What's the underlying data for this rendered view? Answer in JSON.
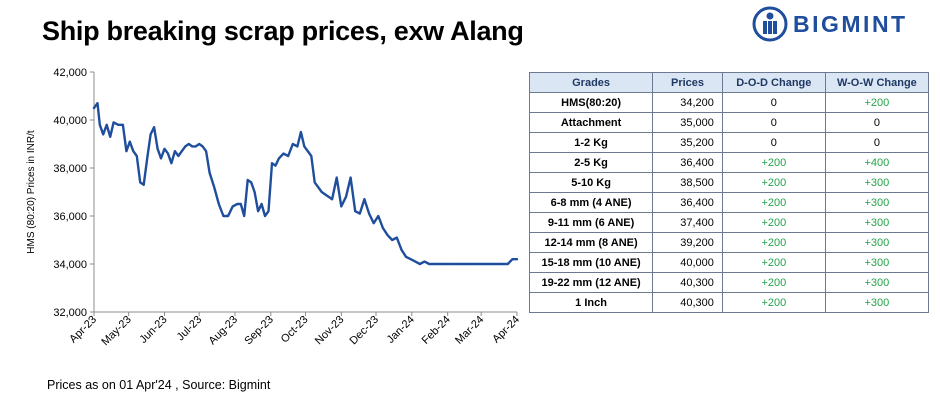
{
  "title": "Ship breaking scrap prices, exw Alang",
  "brand": {
    "name": "BIGMINT",
    "color": "#1f4e9d"
  },
  "footer": "Prices as on 01 Apr'24 , Source:  Bigmint",
  "colors": {
    "line": "#1f4e9d",
    "positive": "#22a24a",
    "header_bg": "#dae6f3"
  },
  "table": {
    "headers": [
      "Grades",
      "Prices",
      "D-O-D Change",
      "W-O-W Change"
    ],
    "rows": [
      {
        "grade": "HMS(80:20)",
        "price": "34,200",
        "dod": "0",
        "wow": "+200"
      },
      {
        "grade": "Attachment",
        "price": "35,000",
        "dod": "0",
        "wow": "0"
      },
      {
        "grade": "1-2 Kg",
        "price": "35,200",
        "dod": "0",
        "wow": "0"
      },
      {
        "grade": "2-5 Kg",
        "price": "36,400",
        "dod": "+200",
        "wow": "+400"
      },
      {
        "grade": "5-10 Kg",
        "price": "38,500",
        "dod": "+200",
        "wow": "+300"
      },
      {
        "grade": "6-8 mm (4 ANE)",
        "price": "36,400",
        "dod": "+200",
        "wow": "+300"
      },
      {
        "grade": "9-11 mm (6 ANE)",
        "price": "37,400",
        "dod": "+200",
        "wow": "+300"
      },
      {
        "grade": "12-14 mm (8 ANE)",
        "price": "39,200",
        "dod": "+200",
        "wow": "+300"
      },
      {
        "grade": "15-18 mm (10 ANE)",
        "price": "40,000",
        "dod": "+200",
        "wow": "+300"
      },
      {
        "grade": "19-22 mm (12 ANE)",
        "price": "40,300",
        "dod": "+200",
        "wow": "+300"
      },
      {
        "grade": "1 Inch",
        "price": "40,300",
        "dod": "+200",
        "wow": "+300"
      }
    ]
  },
  "chart_data": {
    "type": "line",
    "title": "",
    "xlabel": "",
    "ylabel": "HMS (80:20) Prices in INR/t",
    "ylim": [
      32000,
      42000
    ],
    "yticks": [
      "32,000",
      "34,000",
      "36,000",
      "38,000",
      "40,000",
      "42,000"
    ],
    "categories": [
      "Apr-23",
      "May-23",
      "Jun-23",
      "Jul-23",
      "Aug-23",
      "Sep-23",
      "Oct-23",
      "Nov-23",
      "Dec-23",
      "Jan-24",
      "Feb-24",
      "Mar-24",
      "Apr-24"
    ],
    "grid": false,
    "series": [
      {
        "name": "",
        "x": [
          "2023-04-01",
          "2023-04-04",
          "2023-04-06",
          "2023-04-09",
          "2023-04-12",
          "2023-04-15",
          "2023-04-18",
          "2023-04-22",
          "2023-04-26",
          "2023-04-29",
          "2023-05-02",
          "2023-05-05",
          "2023-05-08",
          "2023-05-11",
          "2023-05-14",
          "2023-05-17",
          "2023-05-20",
          "2023-05-23",
          "2023-05-26",
          "2023-05-29",
          "2023-06-01",
          "2023-06-04",
          "2023-06-07",
          "2023-06-10",
          "2023-06-13",
          "2023-06-16",
          "2023-06-19",
          "2023-06-22",
          "2023-06-25",
          "2023-06-28",
          "2023-07-01",
          "2023-07-04",
          "2023-07-07",
          "2023-07-10",
          "2023-07-14",
          "2023-07-18",
          "2023-07-22",
          "2023-07-26",
          "2023-07-30",
          "2023-08-03",
          "2023-08-06",
          "2023-08-09",
          "2023-08-12",
          "2023-08-15",
          "2023-08-18",
          "2023-08-21",
          "2023-08-24",
          "2023-08-27",
          "2023-08-30",
          "2023-09-02",
          "2023-09-05",
          "2023-09-08",
          "2023-09-12",
          "2023-09-16",
          "2023-09-20",
          "2023-09-24",
          "2023-09-27",
          "2023-09-30",
          "2023-10-03",
          "2023-10-06",
          "2023-10-09",
          "2023-10-12",
          "2023-10-15",
          "2023-10-18",
          "2023-10-21",
          "2023-10-24",
          "2023-10-28",
          "2023-11-01",
          "2023-11-05",
          "2023-11-09",
          "2023-11-13",
          "2023-11-17",
          "2023-11-21",
          "2023-11-25",
          "2023-11-29",
          "2023-12-03",
          "2023-12-07",
          "2023-12-11",
          "2023-12-15",
          "2023-12-19",
          "2023-12-23",
          "2023-12-27",
          "2023-12-31",
          "2024-01-04",
          "2024-01-08",
          "2024-01-12",
          "2024-01-16",
          "2024-01-20",
          "2024-01-24",
          "2024-01-28",
          "2024-02-01",
          "2024-02-05",
          "2024-02-09",
          "2024-02-13",
          "2024-02-17",
          "2024-02-21",
          "2024-02-25",
          "2024-02-29",
          "2024-03-04",
          "2024-03-08",
          "2024-03-12",
          "2024-03-16",
          "2024-03-20",
          "2024-03-24",
          "2024-03-28",
          "2024-04-01"
        ],
        "values": [
          40500,
          40700,
          39800,
          39400,
          39800,
          39300,
          39900,
          39800,
          39800,
          38700,
          39100,
          38700,
          38500,
          37400,
          37300,
          38400,
          39400,
          39700,
          38800,
          38400,
          38800,
          38600,
          38200,
          38700,
          38500,
          38700,
          38900,
          39000,
          38900,
          38900,
          39000,
          38900,
          38700,
          37800,
          37200,
          36500,
          36000,
          36000,
          36400,
          36500,
          36500,
          36000,
          37500,
          37400,
          37000,
          36200,
          36500,
          36000,
          36200,
          38200,
          38100,
          38400,
          38600,
          38500,
          39000,
          38900,
          39500,
          38900,
          38700,
          38500,
          37400,
          37200,
          37000,
          36900,
          36800,
          36700,
          37600,
          36400,
          36800,
          37600,
          36200,
          36100,
          36700,
          36100,
          35700,
          36000,
          35500,
          35200,
          35000,
          35100,
          34600,
          34300,
          34200,
          34100,
          34000,
          34100,
          34000,
          34000,
          34000,
          34000,
          34000,
          34000,
          34000,
          34000,
          34000,
          34000,
          34000,
          34000,
          34000,
          34000,
          34000,
          34000,
          34000,
          34000,
          34200,
          34200
        ]
      }
    ]
  }
}
